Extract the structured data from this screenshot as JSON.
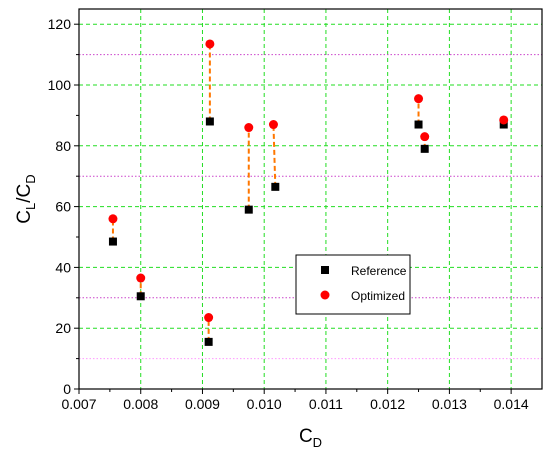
{
  "chart_data": {
    "type": "scatter",
    "title": "",
    "xlabel": {
      "main": "C",
      "sub": "D"
    },
    "ylabel": {
      "main": "C",
      "sub_l": "L",
      "slash": "/",
      "main2": "C",
      "sub_d": "D"
    },
    "xlim": [
      0.007,
      0.0145
    ],
    "ylim": [
      0,
      125
    ],
    "xticks": [
      0.007,
      0.008,
      0.009,
      0.01,
      0.011,
      0.012,
      0.013,
      0.014
    ],
    "xtick_labels": [
      "0.007",
      "0.008",
      "0.009",
      "0.010",
      "0.011",
      "0.012",
      "0.013",
      "0.014"
    ],
    "yticks": [
      0,
      20,
      40,
      60,
      80,
      100,
      120
    ],
    "ytick_labels": [
      "0",
      "20",
      "40",
      "60",
      "80",
      "100",
      "120"
    ],
    "grid": true,
    "grid_color": "#22dd22",
    "reference_lines": [
      {
        "y": 110,
        "color": "#cc44cc"
      },
      {
        "y": 70,
        "color": "#cc44cc"
      },
      {
        "y": 30,
        "color": "#cc44cc"
      },
      {
        "y": 10,
        "color": "#ff99ff"
      }
    ],
    "legend_position": "center-right",
    "series": [
      {
        "name": "Reference",
        "marker": "square",
        "color": "#000000",
        "points": [
          {
            "x": 0.00755,
            "y": 48.5
          },
          {
            "x": 0.008,
            "y": 30.5
          },
          {
            "x": 0.0091,
            "y": 15.5
          },
          {
            "x": 0.00912,
            "y": 88.0
          },
          {
            "x": 0.00975,
            "y": 59.0
          },
          {
            "x": 0.01018,
            "y": 66.5
          },
          {
            "x": 0.0125,
            "y": 87.0
          },
          {
            "x": 0.0126,
            "y": 79.0
          },
          {
            "x": 0.01388,
            "y": 87.0
          }
        ]
      },
      {
        "name": "Optimized",
        "marker": "circle",
        "color": "#ff0000",
        "points": [
          {
            "x": 0.00755,
            "y": 56.0
          },
          {
            "x": 0.008,
            "y": 36.5
          },
          {
            "x": 0.0091,
            "y": 23.5
          },
          {
            "x": 0.00912,
            "y": 113.5
          },
          {
            "x": 0.00975,
            "y": 86.0
          },
          {
            "x": 0.01015,
            "y": 87.0
          },
          {
            "x": 0.0125,
            "y": 95.5
          },
          {
            "x": 0.0126,
            "y": 83.0
          },
          {
            "x": 0.01388,
            "y": 88.5
          }
        ]
      }
    ],
    "connector_color": "#ff7700"
  }
}
